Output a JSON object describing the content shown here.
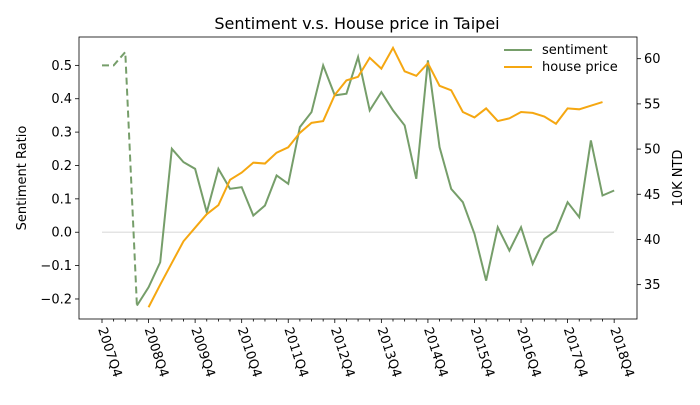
{
  "chart_data": {
    "type": "line",
    "title": "Sentiment v.s. House price in Taipei",
    "ylabel_left": "Sentiment Ratio",
    "ylabel_right": "10K NTD",
    "ylim_left": [
      -0.26,
      0.585
    ],
    "ylim_right": [
      31.2,
      62.4
    ],
    "left_ticks": [
      "−0.2",
      "−0.1",
      "0.0",
      "0.1",
      "0.2",
      "0.3",
      "0.4",
      "0.5"
    ],
    "right_ticks": [
      "35",
      "40",
      "45",
      "50",
      "55",
      "60"
    ],
    "x_tick_labels": [
      "2007Q4",
      "2008Q4",
      "2009Q4",
      "2010Q4",
      "2011Q4",
      "2012Q4",
      "2013Q4",
      "2014Q4",
      "2015Q4",
      "2016Q4",
      "2017Q4",
      "2018Q4"
    ],
    "legend_position": "top-right",
    "zero_line": 0,
    "series": [
      {
        "name": "sentiment",
        "color": "#769e6a",
        "axis": "left",
        "start_quarter": "2007Q4",
        "dashed_until_quarter": "2008Q3",
        "values": [
          0.5,
          0.5,
          0.54,
          -0.22,
          -0.165,
          -0.09,
          0.25,
          0.21,
          0.19,
          0.06,
          0.19,
          0.13,
          0.135,
          0.05,
          0.08,
          0.17,
          0.145,
          0.315,
          0.36,
          0.5,
          0.41,
          0.415,
          0.525,
          0.365,
          0.42,
          0.365,
          0.32,
          0.16,
          0.515,
          0.255,
          0.13,
          0.09,
          -0.005,
          -0.145,
          0.015,
          -0.055,
          0.015,
          -0.095,
          -0.02,
          0.005,
          0.09,
          0.045,
          0.275,
          0.11,
          0.125
        ]
      },
      {
        "name": "house price",
        "color": "#f5a711",
        "axis": "right",
        "start_quarter": "2008Q4",
        "values": [
          32.5,
          35.0,
          37.4,
          39.8,
          41.3,
          42.8,
          43.8,
          46.6,
          47.4,
          48.5,
          48.4,
          49.6,
          50.2,
          51.8,
          52.9,
          53.1,
          56.0,
          57.6,
          58.0,
          60.1,
          58.9,
          61.2,
          58.6,
          58.1,
          59.5,
          57.0,
          56.5,
          54.1,
          53.5,
          54.5,
          53.1,
          53.4,
          54.1,
          54.0,
          53.6,
          52.8,
          54.5,
          54.4,
          54.8,
          55.2
        ]
      }
    ]
  }
}
